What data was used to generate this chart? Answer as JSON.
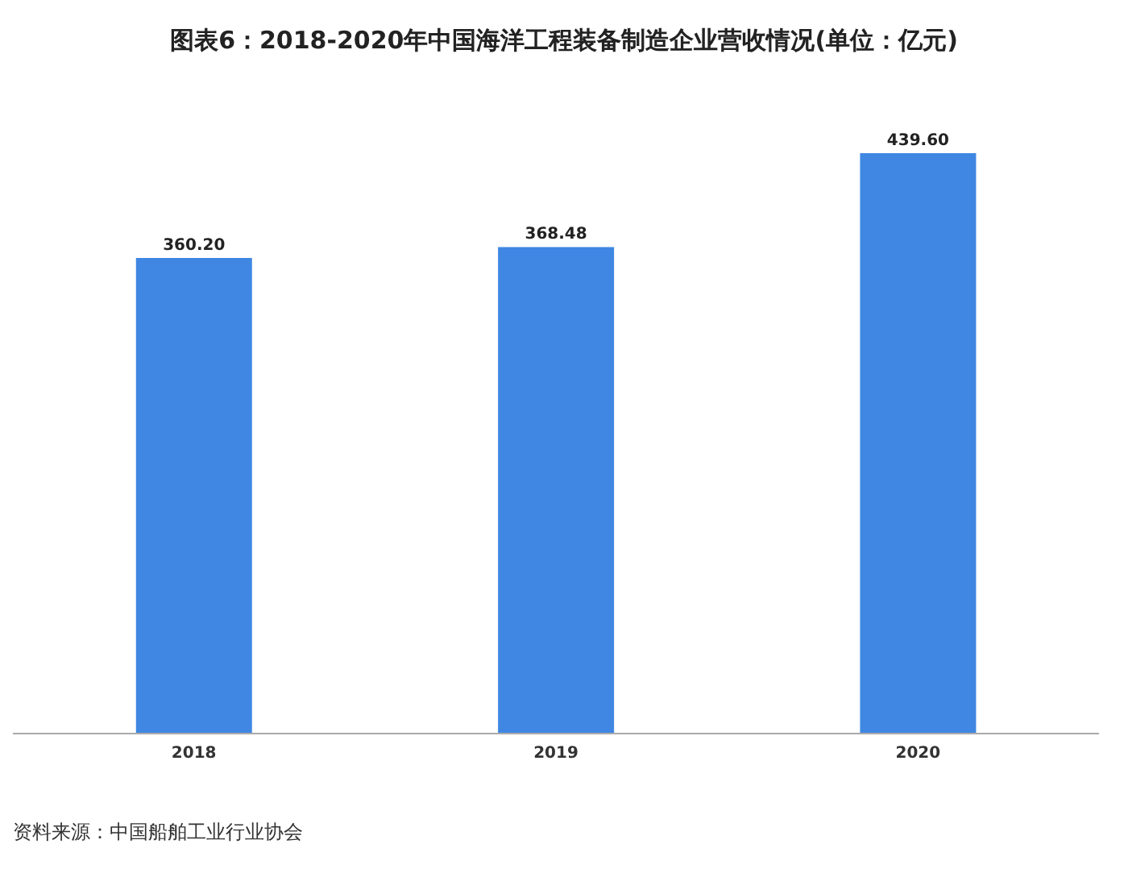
{
  "chart_data": {
    "type": "bar",
    "title": "图表6：2018-2020年中国海洋工程装备制造企业营收情况(单位：亿元)",
    "categories": [
      "2018",
      "2019",
      "2020"
    ],
    "values": [
      360.2,
      368.48,
      439.6
    ],
    "color": "#3f87e2",
    "value_labels": [
      "360.20",
      "368.48",
      "439.60"
    ],
    "grid": false,
    "tick_labels": "x",
    "annotations": [
      "资料来源：中国船舶工业行业协会"
    ]
  }
}
